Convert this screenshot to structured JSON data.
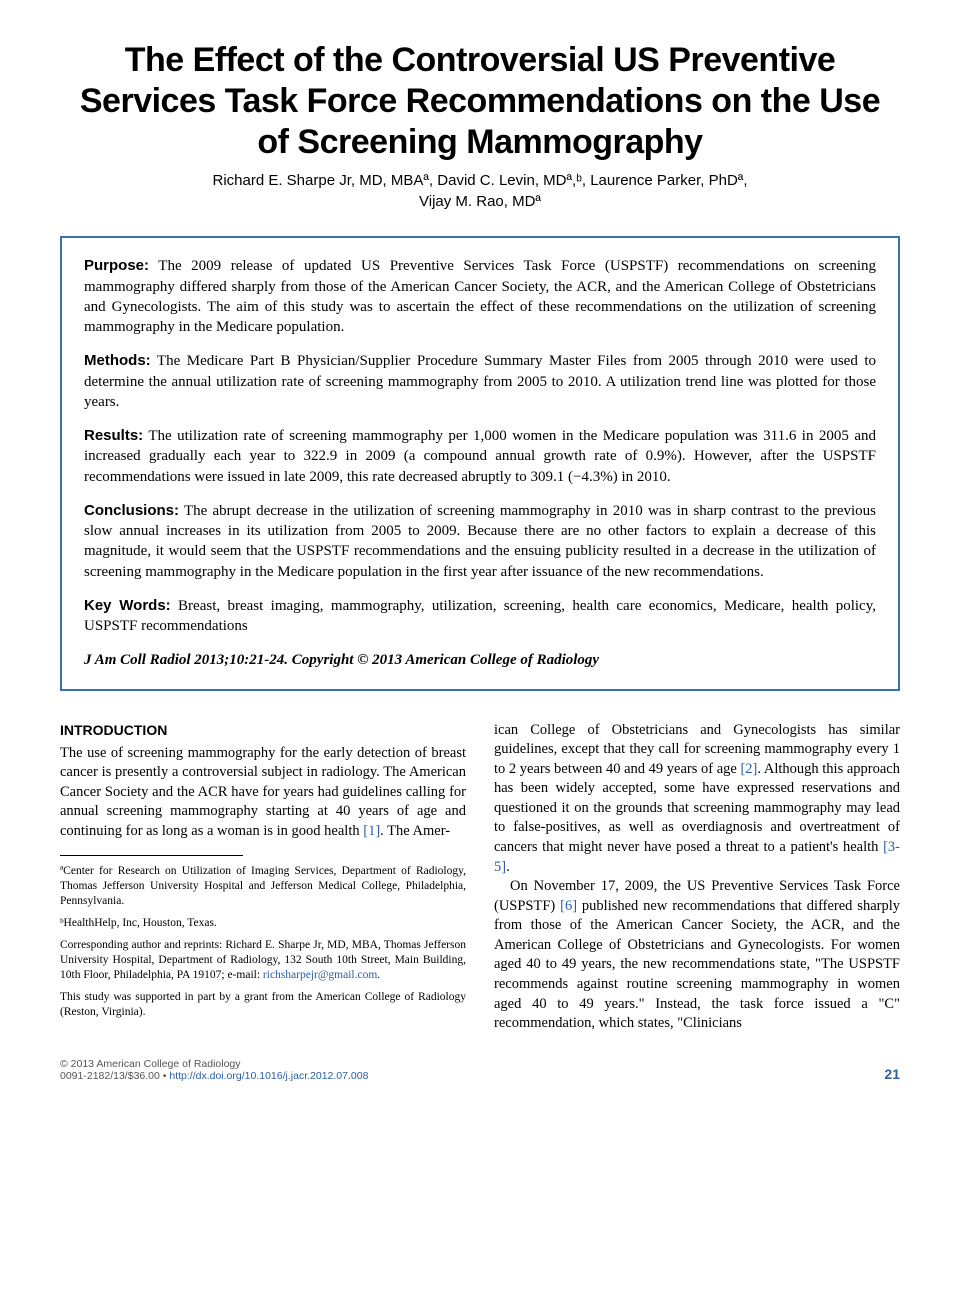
{
  "title": "The Effect of the Controversial US Preventive Services Task Force Recommendations on the Use of Screening Mammography",
  "authors_line1": "Richard E. Sharpe Jr, MD, MBAª, David C. Levin, MDª,ᵇ, Laurence Parker, PhDª,",
  "authors_line2": "Vijay M. Rao, MDª",
  "abstract": {
    "purpose_label": "Purpose:",
    "purpose_text": " The 2009 release of updated US Preventive Services Task Force (USPSTF) recommendations on screening mammography differed sharply from those of the American Cancer Society, the ACR, and the American College of Obstetricians and Gynecologists. The aim of this study was to ascertain the effect of these recommendations on the utilization of screening mammography in the Medicare population.",
    "methods_label": "Methods:",
    "methods_text": " The Medicare Part B Physician/Supplier Procedure Summary Master Files from 2005 through 2010 were used to determine the annual utilization rate of screening mammography from 2005 to 2010. A utilization trend line was plotted for those years.",
    "results_label": "Results:",
    "results_text": " The utilization rate of screening mammography per 1,000 women in the Medicare population was 311.6 in 2005 and increased gradually each year to 322.9 in 2009 (a compound annual growth rate of 0.9%). However, after the USPSTF recommendations were issued in late 2009, this rate decreased abruptly to 309.1 (−4.3%) in 2010.",
    "conclusions_label": "Conclusions:",
    "conclusions_text": " The abrupt decrease in the utilization of screening mammography in 2010 was in sharp contrast to the previous slow annual increases in its utilization from 2005 to 2009. Because there are no other factors to explain a decrease of this magnitude, it would seem that the USPSTF recommendations and the ensuing publicity resulted in a decrease in the utilization of screening mammography in the Medicare population in the first year after issuance of the new recommendations.",
    "keywords_label": "Key Words:",
    "keywords_text": " Breast, breast imaging, mammography, utilization, screening, health care economics, Medicare, health policy, USPSTF recommendations",
    "citation": "J Am Coll Radiol 2013;10:21-24. Copyright © 2013 American College of Radiology"
  },
  "body": {
    "introduction_heading": "INTRODUCTION",
    "left_para1": "The use of screening mammography for the early detection of breast cancer is presently a controversial subject in radiology. The American Cancer Society and the ACR have for years had guidelines calling for annual screening mammography starting at 40 years of age and continuing for as long as a woman is in good health ",
    "ref1": "[1]",
    "left_para1_end": ". The Amer-",
    "right_para1": "ican College of Obstetricians and Gynecologists has similar guidelines, except that they call for screening mammography every 1 to 2 years between 40 and 49 years of age ",
    "ref2": "[2]",
    "right_para1_mid": ". Although this approach has been widely accepted, some have expressed reservations and questioned it on the grounds that screening mammography may lead to false-positives, as well as overdiagnosis and overtreatment of cancers that might never have posed a threat to a patient's health ",
    "ref35": "[3-5]",
    "right_para1_end": ".",
    "right_para2_start": "On November 17, 2009, the US Preventive Services Task Force (USPSTF) ",
    "ref6": "[6]",
    "right_para2_end": " published new recommendations that differed sharply from those of the American Cancer Society, the ACR, and the American College of Obstetricians and Gynecologists. For women aged 40 to 49 years, the new recommendations state, \"The USPSTF recommends against routine screening mammography in women aged 40 to 49 years.\" Instead, the task force issued a \"C\" recommendation, which states, \"Clinicians"
  },
  "footnotes": {
    "fn_a": "ªCenter for Research on Utilization of Imaging Services, Department of Radiology, Thomas Jefferson University Hospital and Jefferson Medical College, Philadelphia, Pennsylvania.",
    "fn_b": "ᵇHealthHelp, Inc, Houston, Texas.",
    "fn_corr_pre": "Corresponding author and reprints: Richard E. Sharpe Jr, MD, MBA, Thomas Jefferson University Hospital, Department of Radiology, 132 South 10th Street, Main Building, 10th Floor, Philadelphia, PA 19107; e-mail: ",
    "fn_email": "richsharpejr@gmail.com",
    "fn_corr_post": ".",
    "fn_support": "This study was supported in part by a grant from the American College of Radiology (Reston, Virginia)."
  },
  "footer": {
    "copyright": "© 2013 American College of Radiology",
    "issn_price": "0091-2182/13/$36.00 • ",
    "doi": "http://dx.doi.org/10.1016/j.jacr.2012.07.008",
    "page_number": "21"
  },
  "colors": {
    "border": "#3b6fb5",
    "link": "#2b5fa5",
    "page_num": "#2b5fa5"
  }
}
